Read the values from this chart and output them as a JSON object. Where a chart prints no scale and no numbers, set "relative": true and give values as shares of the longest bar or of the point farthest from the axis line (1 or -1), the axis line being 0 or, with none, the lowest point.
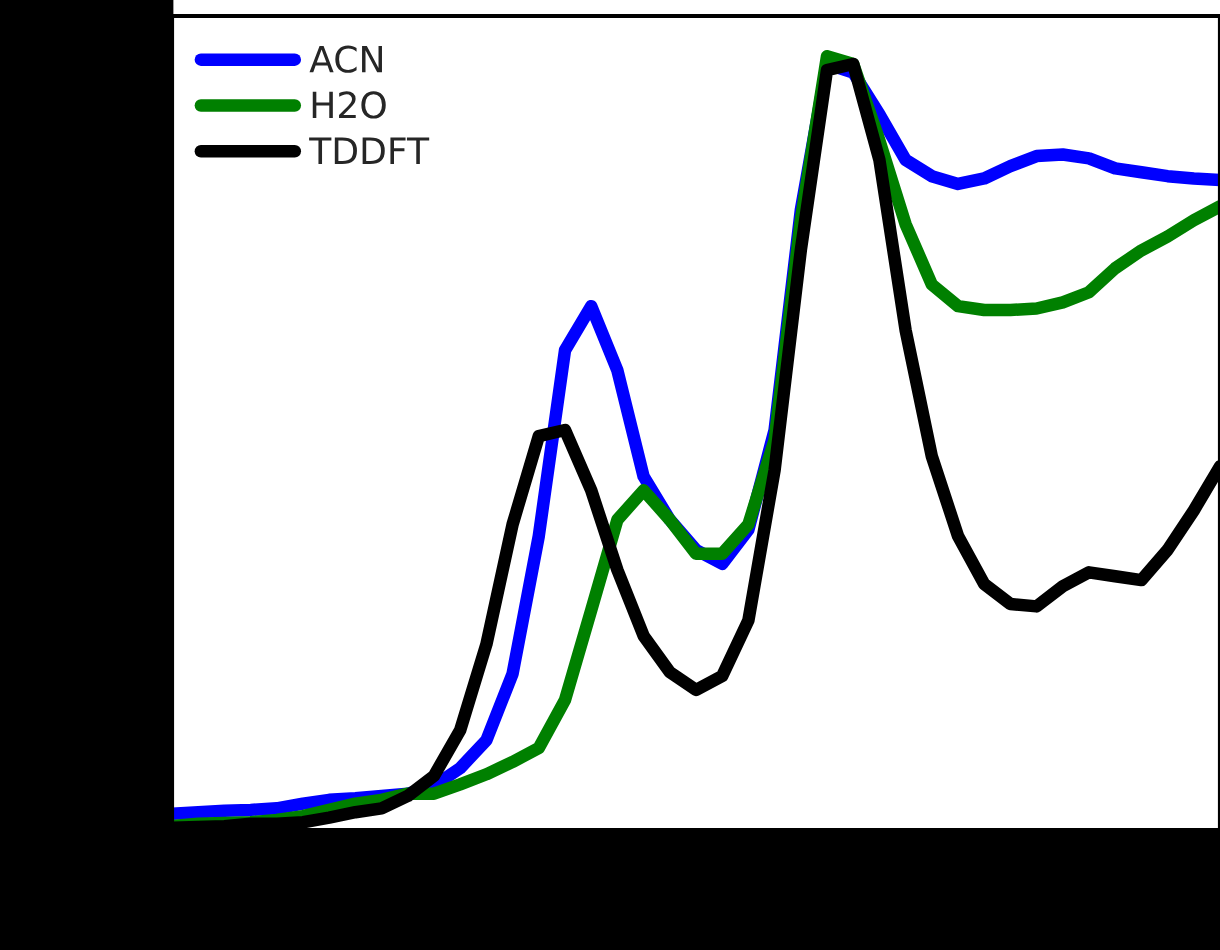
{
  "chart_data": {
    "type": "line",
    "relative": true,
    "legend": "top left",
    "grid": false,
    "categories": [
      null,
      null,
      null,
      null,
      null,
      null,
      null,
      null,
      null,
      null,
      null,
      null,
      null,
      null,
      null,
      null,
      null,
      null,
      null,
      null,
      null,
      null,
      null,
      null,
      null,
      null,
      null,
      null,
      null,
      null,
      null,
      null,
      null,
      null,
      null,
      null,
      null,
      null,
      null,
      null,
      null
    ],
    "series": [
      {
        "name": "ACN",
        "color": "#0000ff",
        "values": [
          0.021,
          0.023,
          0.025,
          0.026,
          0.028,
          0.034,
          0.039,
          0.041,
          0.044,
          0.047,
          0.057,
          0.08,
          0.116,
          0.202,
          0.38,
          0.62,
          0.677,
          0.594,
          0.457,
          0.401,
          0.362,
          0.344,
          0.388,
          0.517,
          0.801,
          0.99,
          0.979,
          0.925,
          0.866,
          0.845,
          0.835,
          0.842,
          0.858,
          0.871,
          0.873,
          0.868,
          0.855,
          0.85,
          0.845,
          0.842,
          0.84
        ]
      },
      {
        "name": "H2O",
        "color": "#008000",
        "values": [
          0.005,
          0.008,
          0.009,
          0.01,
          0.013,
          0.018,
          0.026,
          0.034,
          0.039,
          0.047,
          0.047,
          0.059,
          0.072,
          0.088,
          0.106,
          0.168,
          0.284,
          0.401,
          0.439,
          0.401,
          0.357,
          0.357,
          0.395,
          0.504,
          0.788,
          1.0,
          0.99,
          0.891,
          0.783,
          0.705,
          0.677,
          0.672,
          0.672,
          0.674,
          0.682,
          0.695,
          0.726,
          0.749,
          0.767,
          0.788,
          0.806
        ]
      },
      {
        "name": "TDDFT",
        "color": "#000000",
        "values": [
          0.003,
          0.004,
          0.005,
          0.008,
          0.008,
          0.01,
          0.016,
          0.023,
          0.028,
          0.044,
          0.07,
          0.129,
          0.24,
          0.395,
          0.509,
          0.517,
          0.439,
          0.336,
          0.251,
          0.204,
          0.181,
          0.199,
          0.271,
          0.465,
          0.749,
          0.982,
          0.99,
          0.866,
          0.646,
          0.483,
          0.38,
          0.318,
          0.292,
          0.289,
          0.315,
          0.333,
          0.328,
          0.323,
          0.362,
          0.413,
          0.47
        ]
      }
    ]
  }
}
